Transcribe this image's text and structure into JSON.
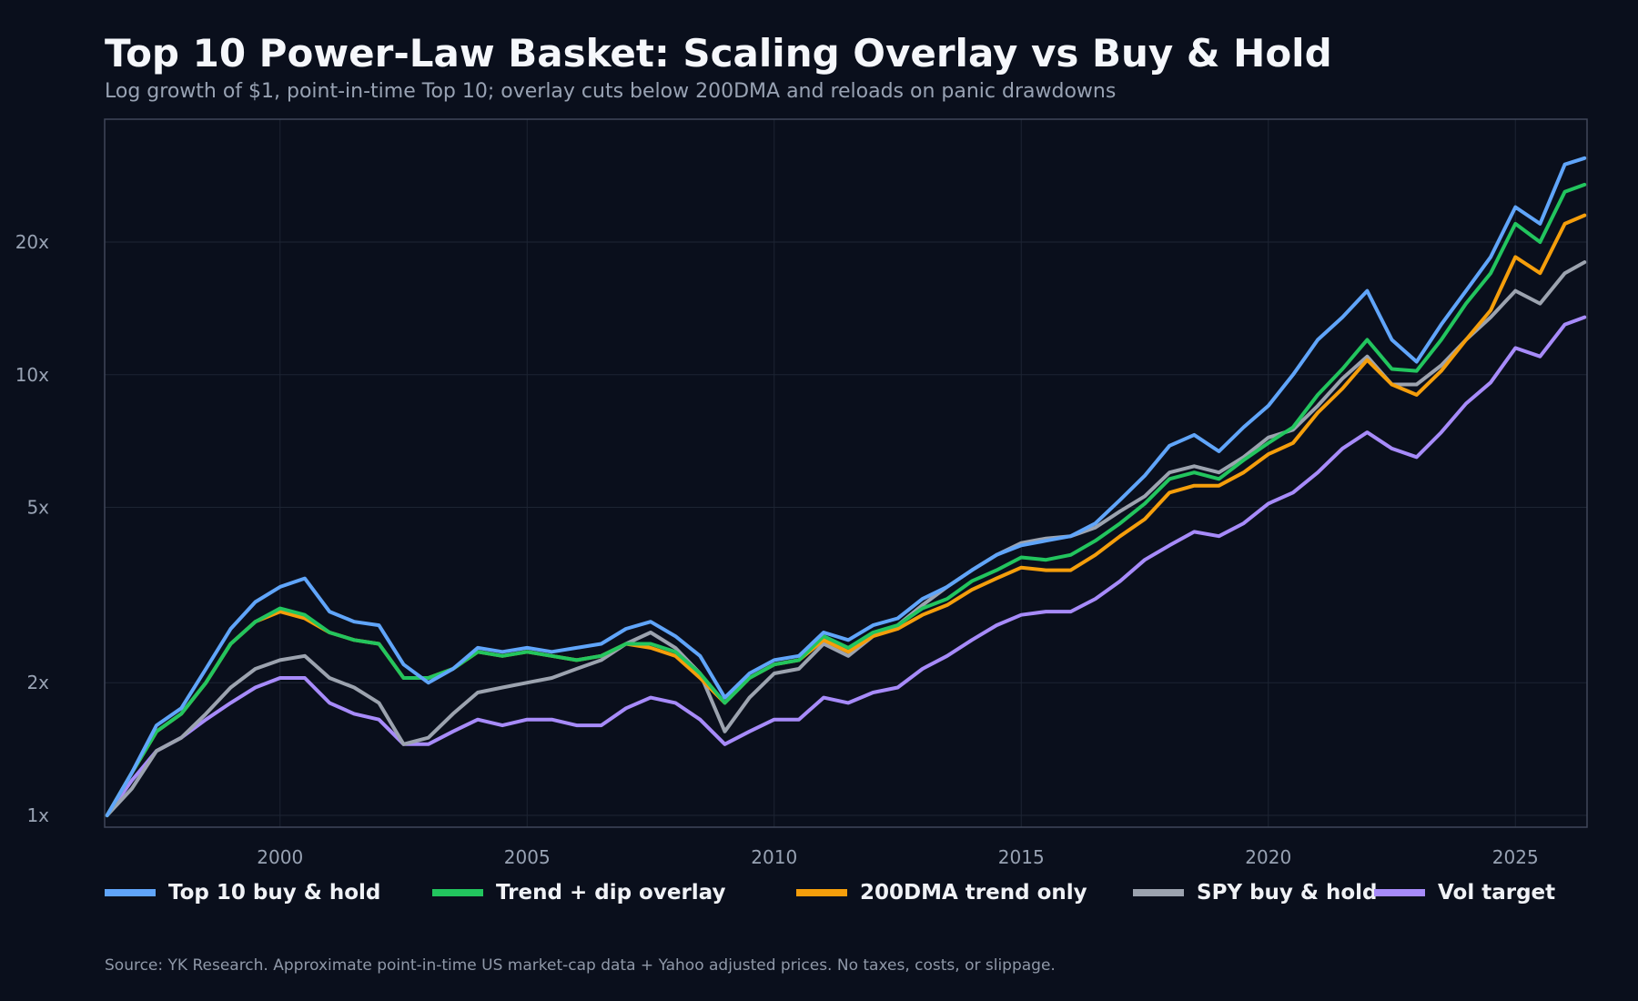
{
  "chart_data": {
    "type": "line",
    "title": "Top 10 Power-Law Basket: Scaling Overlay vs Buy & Hold",
    "subtitle": "Log growth of $1, point-in-time Top 10; overlay cuts below 200DMA and reloads on panic drawdowns",
    "source": "Source: YK Research. Approximate point-in-time US market-cap data + Yahoo adjusted prices. No taxes, costs, or slippage.",
    "y_scale": "log",
    "grid": true,
    "legend_position": "bottom",
    "xlim": [
      1996.45,
      2026.45
    ],
    "ylim": [
      0.94,
      38
    ],
    "x_ticks": [
      2000,
      2005,
      2010,
      2015,
      2020,
      2025
    ],
    "x_tick_labels": [
      "2000",
      "2005",
      "2010",
      "2015",
      "2020",
      "2025"
    ],
    "y_ticks": [
      1,
      2,
      5,
      10,
      20
    ],
    "y_tick_labels": [
      "1x",
      "2x",
      "5x",
      "10x",
      "20x"
    ],
    "x": [
      1996.5,
      1997.0,
      1997.5,
      1998.0,
      1998.5,
      1999.0,
      1999.5,
      2000.0,
      2000.5,
      2001.0,
      2001.5,
      2002.0,
      2002.5,
      2003.0,
      2003.5,
      2004.0,
      2004.5,
      2005.0,
      2005.5,
      2006.0,
      2006.5,
      2007.0,
      2007.5,
      2008.0,
      2008.5,
      2009.0,
      2009.5,
      2010.0,
      2010.5,
      2011.0,
      2011.5,
      2012.0,
      2012.5,
      2013.0,
      2013.5,
      2014.0,
      2014.5,
      2015.0,
      2015.5,
      2016.0,
      2016.5,
      2017.0,
      2017.5,
      2018.0,
      2018.5,
      2019.0,
      2019.5,
      2020.0,
      2020.5,
      2021.0,
      2021.5,
      2022.0,
      2022.5,
      2023.0,
      2023.5,
      2024.0,
      2024.5,
      2025.0,
      2025.5,
      2026.0,
      2026.4
    ],
    "series": [
      {
        "name": "Top 10 buy & hold",
        "color": "#60a5fa",
        "values": [
          1.0,
          1.25,
          1.6,
          1.75,
          2.15,
          2.65,
          3.05,
          3.3,
          3.45,
          2.9,
          2.75,
          2.7,
          2.2,
          2.0,
          2.15,
          2.4,
          2.35,
          2.4,
          2.35,
          2.4,
          2.45,
          2.65,
          2.75,
          2.55,
          2.3,
          1.85,
          2.1,
          2.25,
          2.3,
          2.6,
          2.5,
          2.7,
          2.8,
          3.1,
          3.3,
          3.6,
          3.9,
          4.1,
          4.2,
          4.3,
          4.6,
          5.2,
          5.9,
          6.9,
          7.3,
          6.7,
          7.6,
          8.5,
          10.0,
          12.0,
          13.5,
          15.5,
          12.0,
          10.7,
          13.0,
          15.5,
          18.5,
          24.0,
          22.0,
          30.0,
          31.0
        ]
      },
      {
        "name": "Trend + dip overlay",
        "color": "#22c55e",
        "values": [
          1.0,
          1.25,
          1.55,
          1.7,
          2.0,
          2.45,
          2.75,
          2.95,
          2.85,
          2.6,
          2.5,
          2.45,
          2.05,
          2.05,
          2.15,
          2.35,
          2.3,
          2.35,
          2.3,
          2.25,
          2.3,
          2.45,
          2.45,
          2.35,
          2.1,
          1.8,
          2.05,
          2.2,
          2.25,
          2.55,
          2.4,
          2.6,
          2.7,
          2.95,
          3.1,
          3.4,
          3.6,
          3.85,
          3.8,
          3.9,
          4.2,
          4.6,
          5.1,
          5.8,
          6.0,
          5.8,
          6.4,
          7.0,
          7.6,
          9.0,
          10.3,
          12.0,
          10.3,
          10.2,
          12.0,
          14.5,
          17.0,
          22.0,
          20.0,
          26.0,
          27.0
        ]
      },
      {
        "name": "200DMA trend only",
        "color": "#f59e0b",
        "values": [
          1.0,
          1.25,
          1.55,
          1.7,
          2.0,
          2.45,
          2.75,
          2.9,
          2.8,
          2.6,
          2.5,
          2.45,
          2.05,
          2.05,
          2.15,
          2.35,
          2.3,
          2.35,
          2.3,
          2.25,
          2.3,
          2.45,
          2.4,
          2.3,
          2.05,
          1.8,
          2.05,
          2.2,
          2.25,
          2.5,
          2.35,
          2.55,
          2.65,
          2.85,
          3.0,
          3.25,
          3.45,
          3.65,
          3.6,
          3.6,
          3.9,
          4.3,
          4.7,
          5.4,
          5.6,
          5.6,
          6.0,
          6.6,
          7.0,
          8.2,
          9.3,
          10.8,
          9.5,
          9.0,
          10.2,
          12.0,
          14.0,
          18.5,
          17.0,
          22.0,
          23.0
        ]
      },
      {
        "name": "SPY buy & hold",
        "color": "#9ca3af",
        "values": [
          1.0,
          1.15,
          1.4,
          1.5,
          1.7,
          1.95,
          2.15,
          2.25,
          2.3,
          2.05,
          1.95,
          1.8,
          1.45,
          1.5,
          1.7,
          1.9,
          1.95,
          2.0,
          2.05,
          2.15,
          2.25,
          2.45,
          2.6,
          2.4,
          2.1,
          1.55,
          1.85,
          2.1,
          2.15,
          2.45,
          2.3,
          2.55,
          2.7,
          3.0,
          3.3,
          3.6,
          3.9,
          4.15,
          4.25,
          4.3,
          4.5,
          4.9,
          5.3,
          6.0,
          6.2,
          6.0,
          6.5,
          7.2,
          7.5,
          8.5,
          9.8,
          11.0,
          9.5,
          9.5,
          10.5,
          12.0,
          13.5,
          15.5,
          14.5,
          17.0,
          18.0
        ]
      },
      {
        "name": "Vol target",
        "color": "#a78bfa",
        "values": [
          1.0,
          1.2,
          1.4,
          1.5,
          1.65,
          1.8,
          1.95,
          2.05,
          2.05,
          1.8,
          1.7,
          1.65,
          1.45,
          1.45,
          1.55,
          1.65,
          1.6,
          1.65,
          1.65,
          1.6,
          1.6,
          1.75,
          1.85,
          1.8,
          1.65,
          1.45,
          1.55,
          1.65,
          1.65,
          1.85,
          1.8,
          1.9,
          1.95,
          2.15,
          2.3,
          2.5,
          2.7,
          2.85,
          2.9,
          2.9,
          3.1,
          3.4,
          3.8,
          4.1,
          4.4,
          4.3,
          4.6,
          5.1,
          5.4,
          6.0,
          6.8,
          7.4,
          6.8,
          6.5,
          7.4,
          8.6,
          9.6,
          11.5,
          11.0,
          13.0,
          13.5
        ]
      }
    ]
  }
}
